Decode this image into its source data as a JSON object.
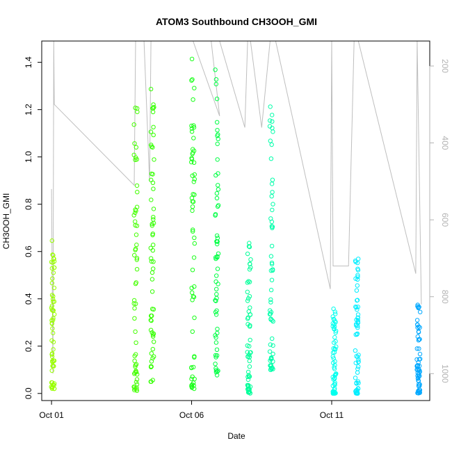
{
  "chart_data": {
    "type": "scatter",
    "title": "ATOM3 Southbound CH3OOH_GMI",
    "xlabel": "Date",
    "ylabel": "CH3OOH_GMI",
    "x_ticks": [
      "Oct 01",
      "Oct 06",
      "Oct 11"
    ],
    "x_tick_days": [
      1,
      6,
      11
    ],
    "xlim": [
      0.65,
      14.5
    ],
    "ylim": [
      -0.03,
      1.49
    ],
    "y_ticks": [
      0.0,
      0.2,
      0.4,
      0.6,
      0.8,
      1.0,
      1.2,
      1.4
    ],
    "y_ticks_text": [
      "0.0",
      "0.2",
      "0.4",
      "0.6",
      "0.8",
      "1.0",
      "1.2",
      "1.4"
    ],
    "y2_label": "",
    "y2_ticks": [
      200,
      400,
      600,
      800,
      1000
    ],
    "y2lim": [
      1070,
      135
    ],
    "grid": false,
    "legend": "none",
    "colors": {
      "line": "#bebebe",
      "axis": "#000000",
      "secondary_axis": "#b3b3b3"
    },
    "series": [
      {
        "day": 1.05,
        "ymin": 0.02,
        "ymax": 0.65,
        "color": "#99ff00"
      },
      {
        "day": 4.0,
        "ymin": 0.01,
        "ymax": 1.22,
        "color": "#44ff00"
      },
      {
        "day": 4.6,
        "ymin": 0.05,
        "ymax": 1.3,
        "color": "#33ff00"
      },
      {
        "day": 6.05,
        "ymin": 0.02,
        "ymax": 1.43,
        "color": "#1aff1a"
      },
      {
        "day": 6.9,
        "ymin": 0.07,
        "ymax": 1.38,
        "color": "#00ff44"
      },
      {
        "day": 8.05,
        "ymin": 0.0,
        "ymax": 0.64,
        "color": "#00ff99"
      },
      {
        "day": 8.85,
        "ymin": 0.1,
        "ymax": 1.27,
        "color": "#00ffaa"
      },
      {
        "day": 11.1,
        "ymin": 0.0,
        "ymax": 0.37,
        "color": "#00ffee"
      },
      {
        "day": 11.9,
        "ymin": 0.0,
        "ymax": 0.61,
        "color": "#00eeff"
      },
      {
        "day": 14.1,
        "ymin": 0.0,
        "ymax": 0.38,
        "color": "#00a8ff"
      }
    ],
    "pressure_trace": [
      [
        1.0,
        520
      ],
      [
        1.05,
        1000
      ],
      [
        1.08,
        135
      ],
      [
        1.1,
        300
      ],
      [
        3.95,
        510
      ],
      [
        4.0,
        135
      ],
      [
        4.3,
        135
      ],
      [
        4.5,
        500
      ],
      [
        4.55,
        135
      ],
      [
        4.7,
        135
      ],
      [
        5.95,
        135
      ],
      [
        6.05,
        135
      ],
      [
        7.0,
        330
      ],
      [
        6.7,
        135
      ],
      [
        7.0,
        135
      ],
      [
        7.9,
        360
      ],
      [
        8.0,
        135
      ],
      [
        8.1,
        135
      ],
      [
        8.5,
        360
      ],
      [
        8.8,
        135
      ],
      [
        9.0,
        135
      ],
      [
        10.95,
        780
      ],
      [
        11.0,
        135
      ],
      [
        11.05,
        720
      ],
      [
        11.6,
        720
      ],
      [
        11.8,
        135
      ],
      [
        11.95,
        135
      ],
      [
        14.0,
        740
      ],
      [
        14.05,
        135
      ],
      [
        14.2,
        820
      ]
    ]
  }
}
